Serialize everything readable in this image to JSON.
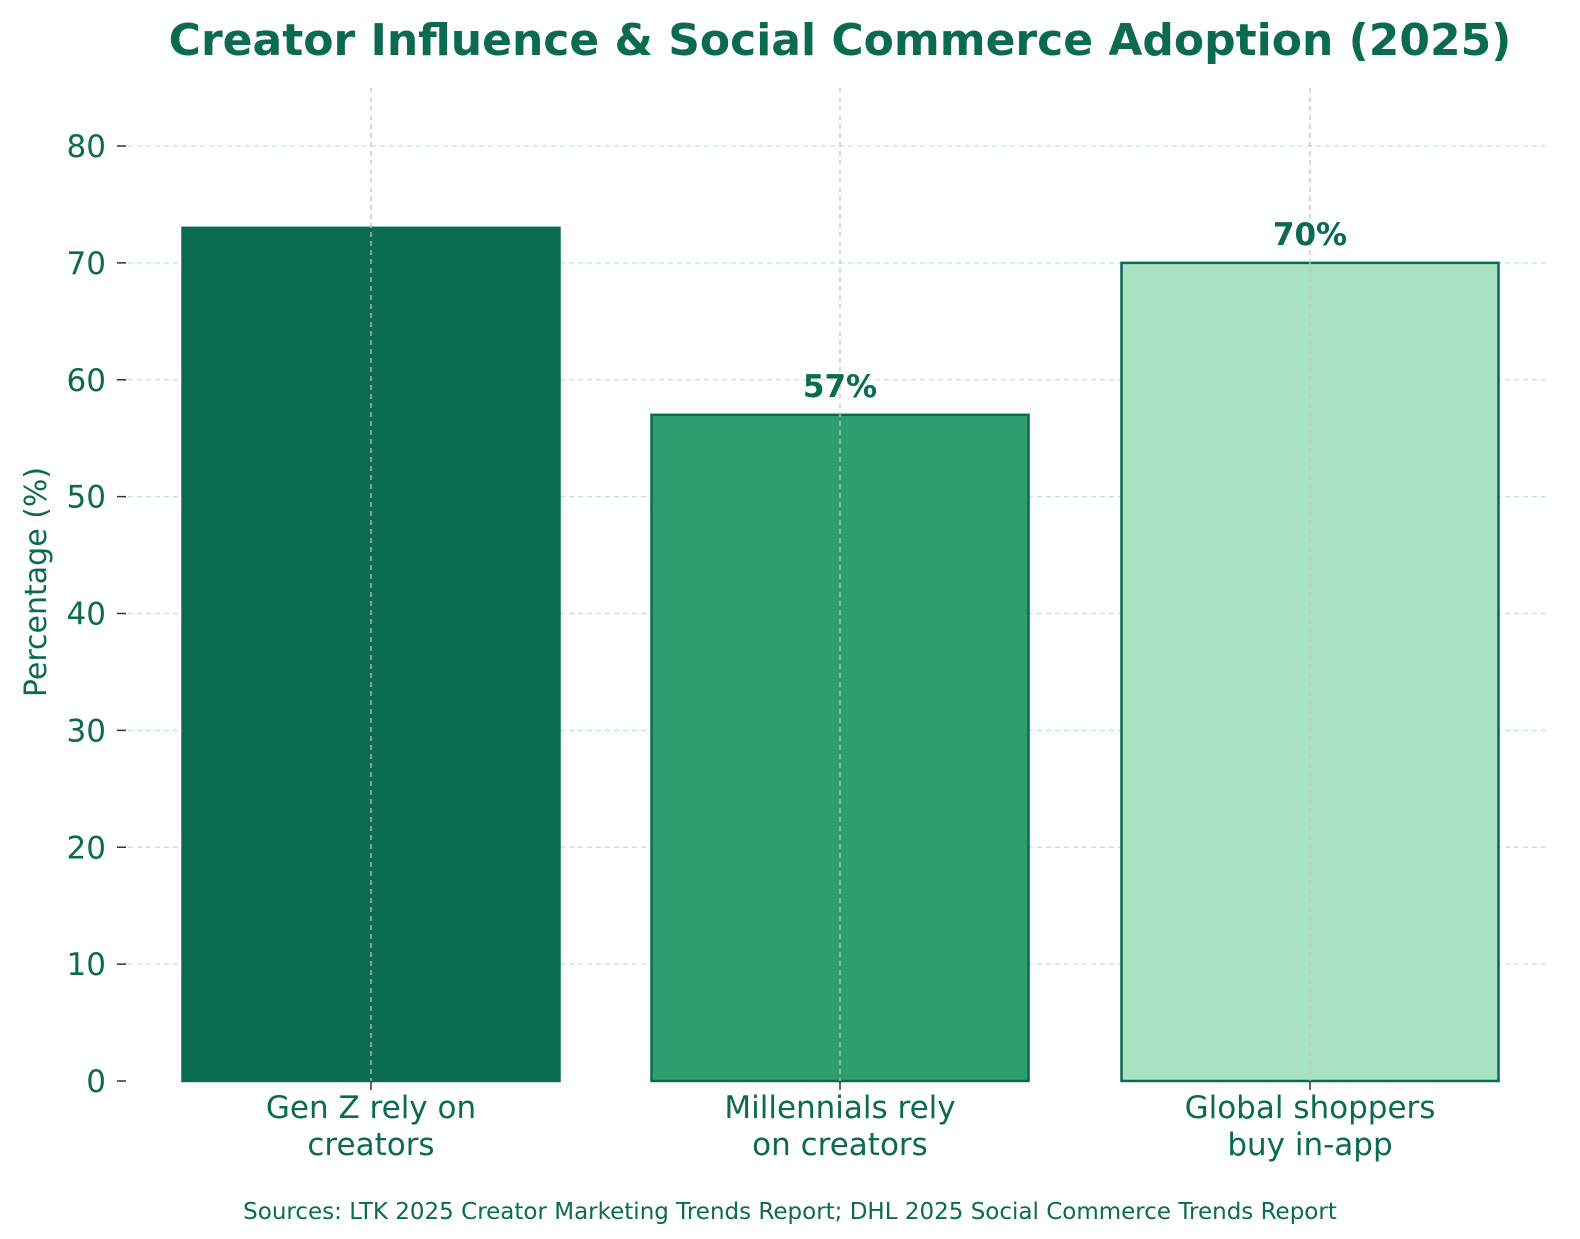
{
  "chart_data": {
    "type": "bar",
    "title": "Creator Influence & Social Commerce Adoption (2025)",
    "ylabel": "Percentage (%)",
    "xlabel": "",
    "ylim": [
      0,
      85
    ],
    "yticks": [
      0,
      10,
      20,
      30,
      40,
      50,
      60,
      70,
      80
    ],
    "grid": true,
    "categories": [
      [
        "Gen Z rely on",
        "creators"
      ],
      [
        "Millennials rely",
        "on creators"
      ],
      [
        "Global shoppers",
        "buy in-app"
      ]
    ],
    "values": [
      73,
      57,
      70
    ],
    "data_labels": [
      "",
      "57%",
      "70%"
    ],
    "bar_colors": [
      "#0b6b4f",
      "#2f9e6e",
      "#a8e2c2"
    ],
    "edge_color": "#0b6b4f",
    "footnote": "Sources: LTK 2025 Creator Marketing Trends Report; DHL 2025 Social Commerce Trends Report"
  }
}
